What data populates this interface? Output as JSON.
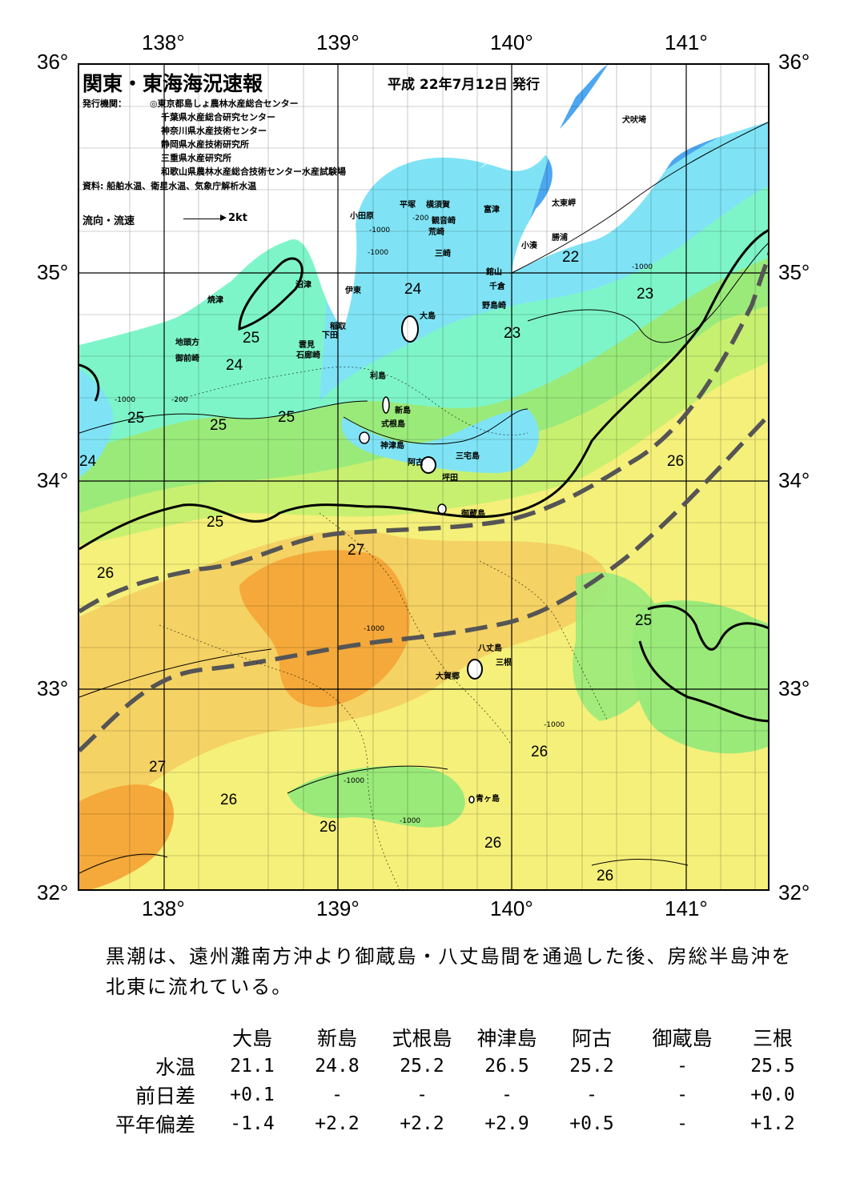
{
  "header": {
    "title": "関東・東海海況速報",
    "date": "平成 22年7月12日 発行",
    "issuers_label": "発行機関：",
    "issuers": [
      "◎東京都島しょ農林水産総合センター",
      "千葉県水産総合研究センター",
      "神奈川県水産技術センター",
      "静岡県水産技術研究所",
      "三重県水産研究所",
      "和歌山県農林水産総合技術センター水産試験場"
    ],
    "source": "資料: 船舶水温、衛星水温、気象庁解析水温",
    "flow_label": "流向・流速",
    "flow_scale": "2kt"
  },
  "axes": {
    "lon_labels": [
      "138°",
      "139°",
      "140°",
      "141°"
    ],
    "lat_labels": [
      "36°",
      "35°",
      "34°",
      "33°",
      "32°"
    ]
  },
  "map": {
    "places": [
      {
        "name": "犬吠埼"
      },
      {
        "name": "太東岬"
      },
      {
        "name": "勝浦"
      },
      {
        "name": "小湊"
      },
      {
        "name": "富津"
      },
      {
        "name": "横須賀"
      },
      {
        "name": "観音崎"
      },
      {
        "name": "荒崎"
      },
      {
        "name": "三崎"
      },
      {
        "name": "平塚"
      },
      {
        "name": "小田原"
      },
      {
        "name": "館山"
      },
      {
        "name": "千倉"
      },
      {
        "name": "野島崎"
      },
      {
        "name": "大島"
      },
      {
        "name": "沼津"
      },
      {
        "name": "伊東"
      },
      {
        "name": "焼津"
      },
      {
        "name": "稲取"
      },
      {
        "name": "下田"
      },
      {
        "name": "雲見"
      },
      {
        "name": "石廊崎"
      },
      {
        "name": "地頭方"
      },
      {
        "name": "御前崎"
      },
      {
        "name": "利島"
      },
      {
        "name": "新島"
      },
      {
        "name": "式根島"
      },
      {
        "name": "神津島"
      },
      {
        "name": "三宅島"
      },
      {
        "name": "阿古"
      },
      {
        "name": "坪田"
      },
      {
        "name": "御蔵島"
      },
      {
        "name": "八丈島"
      },
      {
        "name": "三根"
      },
      {
        "name": "大賀郷"
      },
      {
        "name": "青ヶ島"
      }
    ],
    "isotherm_labels": [
      "22",
      "23",
      "23",
      "24",
      "24",
      "24",
      "25",
      "25",
      "25",
      "25",
      "25",
      "25",
      "26",
      "26",
      "26",
      "26",
      "26",
      "26",
      "26",
      "27",
      "27"
    ],
    "depth_labels": [
      "-200",
      "-1000"
    ],
    "temperature_colors": {
      "21": "#2f7fe0",
      "22": "#4da6f0",
      "23": "#7fe3f5",
      "24": "#7ef5c8",
      "25": "#9aea7a",
      "25.5": "#c8f070",
      "26": "#f5f07a",
      "26.5": "#f5d264",
      "27": "#f5a93a"
    }
  },
  "description": "黒潮は、遠州灘南方沖より御蔵島・八丈島間を通過した後、房総半島沖を北東に流れている。",
  "observations": {
    "stations": [
      "大島",
      "新島",
      "式根島",
      "神津島",
      "阿古",
      "御蔵島",
      "三根"
    ],
    "rows": [
      {
        "label": "水温",
        "values": [
          "21.1",
          "24.8",
          "25.2",
          "26.5",
          "25.2",
          "-",
          "25.5"
        ]
      },
      {
        "label": "前日差",
        "values": [
          "+0.1",
          "-",
          "-",
          "-",
          "-",
          "-",
          "+0.0"
        ]
      },
      {
        "label": "平年偏差",
        "values": [
          "-1.4",
          "+2.2",
          "+2.2",
          "+2.9",
          "+0.5",
          "-",
          "+1.2"
        ]
      }
    ]
  }
}
